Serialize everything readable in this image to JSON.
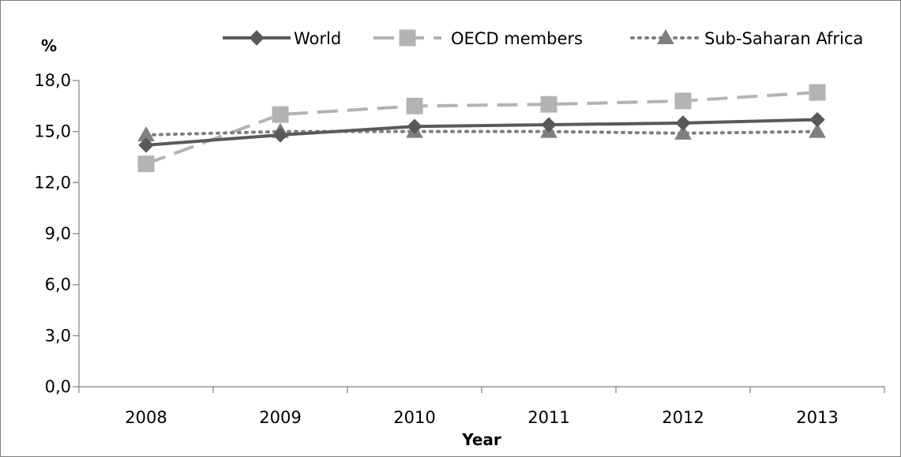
{
  "chart_data": {
    "type": "line",
    "title": "",
    "xlabel": "Year",
    "ylabel": "%",
    "categories": [
      "2008",
      "2009",
      "2010",
      "2011",
      "2012",
      "2013"
    ],
    "ylim": [
      0,
      18
    ],
    "yticks": [
      "0,0",
      "3,0",
      "6,0",
      "9,0",
      "12,0",
      "15,0",
      "18,0"
    ],
    "ytick_values": [
      0,
      3,
      6,
      9,
      12,
      15,
      18
    ],
    "grid": false,
    "legend_position": "top-right",
    "series": [
      {
        "name": "World",
        "values": [
          14.2,
          14.8,
          15.3,
          15.4,
          15.5,
          15.7
        ],
        "color": "#595959",
        "line_style": "solid",
        "marker": "diamond"
      },
      {
        "name": "OECD members",
        "values": [
          13.1,
          16.0,
          16.5,
          16.6,
          16.8,
          17.3
        ],
        "color": "#b3b3b3",
        "line_style": "dashed",
        "marker": "square"
      },
      {
        "name": "Sub-Saharan Africa",
        "values": [
          14.8,
          15.0,
          15.0,
          15.0,
          14.9,
          15.0
        ],
        "color": "#7f7f7f",
        "line_style": "dotted",
        "marker": "triangle"
      }
    ]
  }
}
